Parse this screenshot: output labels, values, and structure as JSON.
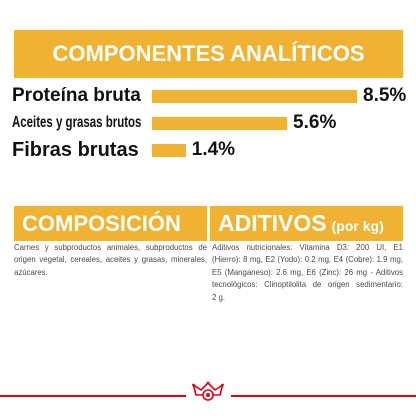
{
  "colors": {
    "accent": "#F0B232",
    "label_text": "#111111",
    "body_text": "#4A4A4A",
    "brand_red": "#E2001A",
    "banner_text": "#FFFFFF"
  },
  "chart_data": {
    "type": "bar",
    "orientation": "horizontal",
    "title": "COMPONENTES ANALÍTICOS",
    "categories": [
      "Proteína bruta",
      "Aceites y grasas brutos",
      "Fibras brutas"
    ],
    "values": [
      8.5,
      5.6,
      1.4
    ],
    "value_labels": [
      "8.5%",
      "5.6%",
      "1.4%"
    ],
    "xlabel": "",
    "ylabel": "",
    "xlim": [
      0,
      8.5
    ],
    "grid": false,
    "legend": "none"
  },
  "composition": {
    "title": "COMPOSICIÓN",
    "lines": [
      "Carnes y subproductos animales, subproductos de",
      "origen vegetal, cereales, aceites y grasas, minerales,",
      "azúcares."
    ]
  },
  "additives": {
    "title": "ADITIVOS",
    "unit_note": "(por kg)",
    "lines": [
      "Aditivos nutricionales: Vitamina D3: 200 UI, E1",
      "(Hierro): 8 mg, E2 (Yodo): 0.2 mg, E4 (Cobre): 1.9 mg,",
      "E5 (Manganeso): 2.6 mg, E6 (Zinc): 26 mg - Aditivos",
      "tecnológicos: Clinoptilolita de origen sedimentario:",
      "2 g."
    ]
  },
  "logo": {
    "icon": "crown-logo-icon"
  }
}
